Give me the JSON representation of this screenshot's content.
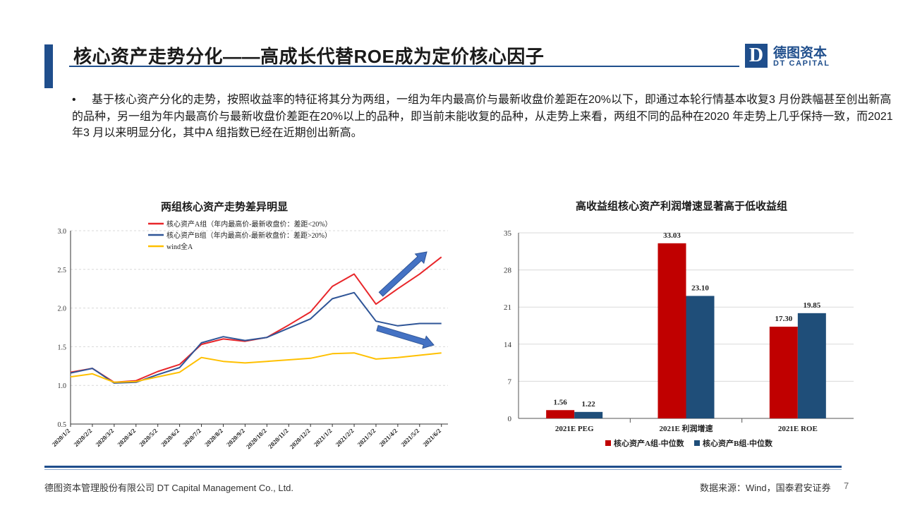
{
  "header": {
    "title": "核心资产走势分化——高成长代替ROE成为定价核心因子",
    "logo_mark": "D",
    "logo_cn": "德图资本",
    "logo_en": "DT CAPITAL"
  },
  "body": {
    "bullet": "•",
    "paragraph": "基于核心资产分化的走势，按照收益率的特征将其分为两组，一组为年内最高价与最新收盘价差距在20%以下，即通过本轮行情基本收复3 月份跌幅甚至创出新高的品种，另一组为年内最高价与最新收盘价差距在20%以上的品种，即当前未能收复的品种，从走势上来看，两组不同的品种在2020 年走势上几乎保持一致，而2021 年3 月以来明显分化，其中A 组指数已经在近期创出新高。"
  },
  "chart_data": [
    {
      "type": "line",
      "title": "两组核心资产走势差异明显",
      "ylim": [
        0.5,
        3.0
      ],
      "yticks": [
        "3.0",
        "2.5",
        "2.0",
        "1.5",
        "1.0",
        "0.5"
      ],
      "x": [
        "2020/1/2",
        "2020/2/2",
        "2020/3/2",
        "2020/4/2",
        "2020/5/2",
        "2020/6/2",
        "2020/7/2",
        "2020/8/2",
        "2020/9/2",
        "2020/10/2",
        "2020/11/2",
        "2020/12/2",
        "2021/1/2",
        "2021/2/2",
        "2021/3/2",
        "2021/4/2",
        "2021/5/2",
        "2021/6/2"
      ],
      "legend_position": "top",
      "series": [
        {
          "name": "核心资产A组（年内最高价-最新收盘价：差距<20%）",
          "color": "#e8262a",
          "values": [
            1.17,
            1.22,
            1.04,
            1.06,
            1.18,
            1.27,
            1.53,
            1.6,
            1.57,
            1.62,
            1.78,
            1.95,
            2.28,
            2.44,
            2.05,
            2.25,
            2.44,
            2.66
          ]
        },
        {
          "name": "核心资产B组（年内最高价-最新收盘价：差距>20%）",
          "color": "#2f5597",
          "values": [
            1.16,
            1.22,
            1.03,
            1.04,
            1.14,
            1.23,
            1.55,
            1.63,
            1.58,
            1.62,
            1.74,
            1.86,
            2.12,
            2.2,
            1.83,
            1.77,
            1.8,
            1.8
          ]
        },
        {
          "name": "wind全A",
          "color": "#ffc000",
          "values": [
            1.11,
            1.15,
            1.04,
            1.05,
            1.11,
            1.17,
            1.36,
            1.31,
            1.29,
            1.31,
            1.33,
            1.35,
            1.41,
            1.42,
            1.34,
            1.36,
            1.39,
            1.42
          ]
        }
      ]
    },
    {
      "type": "bar",
      "title": "高收益组核心资产利润增速显著高于低收益组",
      "categories": [
        "2021E PEG",
        "2021E 利润增速",
        "2021E ROE"
      ],
      "ylim": [
        0,
        35
      ],
      "yticks": [
        "35",
        "28",
        "21",
        "14",
        "7",
        "0"
      ],
      "legend_position": "bottom",
      "series": [
        {
          "name": "核心资产A组-中位数",
          "color": "#c00000",
          "values": [
            1.56,
            33.03,
            17.3
          ],
          "labels": [
            "1.56",
            "33.03",
            "17.30"
          ]
        },
        {
          "name": "核心资产B组-中位数",
          "color": "#1f4e79",
          "values": [
            1.22,
            23.1,
            19.85
          ],
          "labels": [
            "1.22",
            "23.10",
            "19.85"
          ]
        }
      ]
    }
  ],
  "footer": {
    "company": "德图资本管理股份有限公司  DT Capital  Management  Co., Ltd.",
    "source": "数据来源：Wind，国泰君安证券",
    "page": "7"
  }
}
